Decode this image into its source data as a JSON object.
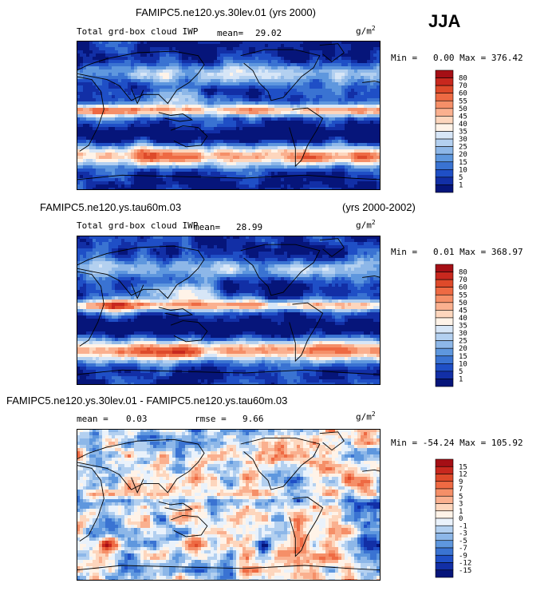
{
  "season": "JJA",
  "panels": [
    {
      "title": "FAMIPC5.ne120.ys.30lev.01 (yrs 2000)",
      "title_right": "",
      "subtitle": "Total grd-box cloud IWP",
      "stat1_label": "mean=",
      "stat1_value": "29.02",
      "stat2_label": "",
      "stat2_value": "",
      "units": "g/m",
      "units_exp": "2",
      "minmax": "Min =   0.00 Max = 376.42",
      "levels": [
        "80",
        "70",
        "60",
        "55",
        "50",
        "45",
        "40",
        "35",
        "30",
        "25",
        "20",
        "15",
        "10",
        "5",
        "1"
      ],
      "colors": [
        "#a50f15",
        "#c8281e",
        "#de4a2a",
        "#ee6a43",
        "#f58f68",
        "#fab08f",
        "#fdd6bd",
        "#fff3e8",
        "#d7e6f7",
        "#b3d0f0",
        "#8db7e8",
        "#5e97de",
        "#3a73d2",
        "#1f4fc6",
        "#122fa6",
        "#06157a"
      ]
    },
    {
      "title": "FAMIPC5.ne120.ys.tau60m.03",
      "title_right": "(yrs 2000-2002)",
      "subtitle": "Total grd-box cloud IWP",
      "stat1_label": "mean=",
      "stat1_value": "28.99",
      "stat2_label": "",
      "stat2_value": "",
      "units": "g/m",
      "units_exp": "2",
      "minmax": "Min =   0.01 Max = 368.97",
      "levels": [
        "80",
        "70",
        "60",
        "55",
        "50",
        "45",
        "40",
        "35",
        "30",
        "25",
        "20",
        "15",
        "10",
        "5",
        "1"
      ],
      "colors": [
        "#a50f15",
        "#c8281e",
        "#de4a2a",
        "#ee6a43",
        "#f58f68",
        "#fab08f",
        "#fdd6bd",
        "#fff3e8",
        "#d7e6f7",
        "#b3d0f0",
        "#8db7e8",
        "#5e97de",
        "#3a73d2",
        "#1f4fc6",
        "#122fa6",
        "#06157a"
      ]
    },
    {
      "title": "FAMIPC5.ne120.ys.30lev.01 - FAMIPC5.ne120.ys.tau60m.03",
      "title_right": "",
      "subtitle": "",
      "stat1_label": "mean =",
      "stat1_value": "0.03",
      "stat2_label": "rmse =",
      "stat2_value": "9.66",
      "units": "g/m",
      "units_exp": "2",
      "minmax": "Min = -54.24 Max = 105.92",
      "levels": [
        "15",
        "12",
        "9",
        "7",
        "5",
        "3",
        "1",
        "0",
        "-1",
        "-3",
        "-5",
        "-7",
        "-9",
        "-12",
        "-15"
      ],
      "colors": [
        "#a50f15",
        "#c8281e",
        "#de4a2a",
        "#ee6a43",
        "#f58f68",
        "#fab08f",
        "#fdd6bd",
        "#fff3e8",
        "#eaf2fb",
        "#b3d0f0",
        "#8db7e8",
        "#5e97de",
        "#3a73d2",
        "#1f4fc6",
        "#122fa6",
        "#06157a"
      ]
    }
  ],
  "chart_data": [
    {
      "type": "heatmap",
      "title": "FAMIPC5.ne120.ys.30lev.01 (yrs 2000)",
      "variable": "Total grd-box cloud IWP",
      "units": "g/m2",
      "mean": 29.02,
      "min": 0.0,
      "max": 376.42,
      "contour_levels": [
        1,
        5,
        10,
        15,
        20,
        25,
        30,
        35,
        40,
        45,
        50,
        55,
        60,
        70,
        80
      ],
      "season": "JJA"
    },
    {
      "type": "heatmap",
      "title": "FAMIPC5.ne120.ys.tau60m.03 (yrs 2000-2002)",
      "variable": "Total grd-box cloud IWP",
      "units": "g/m2",
      "mean": 28.99,
      "min": 0.01,
      "max": 368.97,
      "contour_levels": [
        1,
        5,
        10,
        15,
        20,
        25,
        30,
        35,
        40,
        45,
        50,
        55,
        60,
        70,
        80
      ],
      "season": "JJA"
    },
    {
      "type": "heatmap",
      "title": "FAMIPC5.ne120.ys.30lev.01 - FAMIPC5.ne120.ys.tau60m.03",
      "units": "g/m2",
      "mean": 0.03,
      "rmse": 9.66,
      "min": -54.24,
      "max": 105.92,
      "contour_levels": [
        -15,
        -12,
        -9,
        -7,
        -5,
        -3,
        -1,
        0,
        1,
        3,
        5,
        7,
        9,
        12,
        15
      ],
      "season": "JJA"
    }
  ]
}
